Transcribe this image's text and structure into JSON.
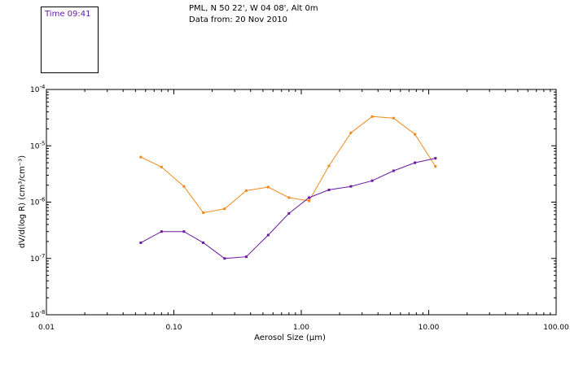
{
  "time_label": "Time 09:41",
  "header": {
    "station": "PML, N 50 22', W 04 08', Alt 0m",
    "data_from": "Data from: 20 Nov 2010"
  },
  "colors": {
    "series1": "#f08a1c",
    "series2": "#6a1aa0",
    "axis": "#000000"
  },
  "chart_data": {
    "type": "line",
    "xscale": "log",
    "yscale": "log",
    "xlim": [
      0.01,
      100
    ],
    "ylim": [
      1e-08,
      0.0001
    ],
    "xlabel_prefix": "Aerosol Size (",
    "xlabel_unit_symbol": "μ",
    "xlabel_suffix": "m)",
    "ylabel_text": "dV/d(log R) (cm³/cm⁻³)",
    "x_ticks": [
      {
        "value": 0.01,
        "label": "0.01"
      },
      {
        "value": 0.1,
        "label": "0.10"
      },
      {
        "value": 1,
        "label": "1.00"
      },
      {
        "value": 10,
        "label": "10.00"
      },
      {
        "value": 100,
        "label": "100.00"
      }
    ],
    "y_ticks": [
      {
        "value": 1e-08,
        "base": "10",
        "exp": "-8"
      },
      {
        "value": 1e-07,
        "base": "10",
        "exp": "-7"
      },
      {
        "value": 1e-06,
        "base": "10",
        "exp": "-6"
      },
      {
        "value": 1e-05,
        "base": "10",
        "exp": "-5"
      },
      {
        "value": 0.0001,
        "base": "10",
        "exp": "-4"
      }
    ],
    "series": [
      {
        "name": "orange series",
        "color": "#f08a1c",
        "x": [
          0.055,
          0.08,
          0.12,
          0.17,
          0.25,
          0.37,
          0.55,
          0.8,
          1.15,
          1.65,
          2.45,
          3.6,
          5.3,
          7.8,
          11.3
        ],
        "y": [
          6.3e-06,
          4.2e-06,
          1.9e-06,
          6.5e-07,
          7.6e-07,
          1.6e-06,
          1.85e-06,
          1.2e-06,
          1.05e-06,
          4.4e-06,
          1.7e-05,
          3.3e-05,
          3.1e-05,
          1.6e-05,
          4.3e-06
        ]
      },
      {
        "name": "purple series",
        "color": "#6a1aa0",
        "x": [
          0.055,
          0.08,
          0.12,
          0.17,
          0.25,
          0.37,
          0.55,
          0.8,
          1.15,
          1.65,
          2.45,
          3.6,
          5.3,
          7.8,
          11.3
        ],
        "y": [
          1.9e-07,
          3e-07,
          3e-07,
          1.9e-07,
          1e-07,
          1.07e-07,
          2.6e-07,
          6.3e-07,
          1.2e-06,
          1.65e-06,
          1.9e-06,
          2.4e-06,
          3.6e-06,
          5e-06,
          6e-06
        ]
      }
    ]
  }
}
